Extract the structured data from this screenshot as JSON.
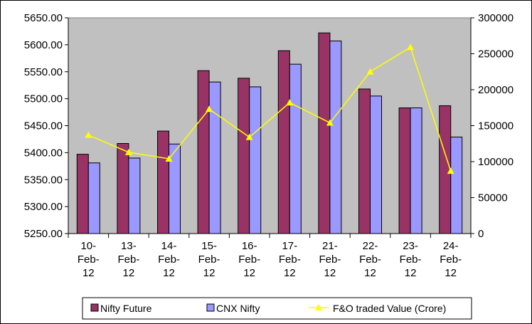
{
  "chart_data": {
    "type": "bar",
    "categories": [
      [
        "10-",
        "Feb-",
        "12"
      ],
      [
        "13-",
        "Feb-",
        "12"
      ],
      [
        "14-",
        "Feb-",
        "12"
      ],
      [
        "15-",
        "Feb-",
        "12"
      ],
      [
        "16-",
        "Feb-",
        "12"
      ],
      [
        "17-",
        "Feb-",
        "12"
      ],
      [
        "21-",
        "Feb-",
        "12"
      ],
      [
        "22-",
        "Feb-",
        "12"
      ],
      [
        "23-",
        "Feb-",
        "12"
      ],
      [
        "24-",
        "Feb-",
        "12"
      ]
    ],
    "series": [
      {
        "name": "Nifty Future",
        "type": "bar",
        "axis": "left",
        "color": "#993366",
        "values": [
          5397,
          5417,
          5440,
          5552,
          5538,
          5589,
          5622,
          5518,
          5483,
          5487
        ]
      },
      {
        "name": "CNX Nifty",
        "type": "bar",
        "axis": "left",
        "color": "#9999ff",
        "values": [
          5381,
          5390,
          5416,
          5531,
          5522,
          5564,
          5607,
          5505,
          5483,
          5429
        ]
      },
      {
        "name": "F&O traded Value (Crore)",
        "type": "line",
        "axis": "right",
        "color": "#ffff00",
        "values": [
          137000,
          113000,
          104000,
          173000,
          134000,
          182000,
          154000,
          225000,
          259000,
          87000
        ]
      }
    ],
    "y_left": {
      "min": 5250,
      "max": 5650,
      "step": 50,
      "ticks": [
        "5250.00",
        "5300.00",
        "5350.00",
        "5400.00",
        "5450.00",
        "5500.00",
        "5550.00",
        "5600.00",
        "5650.00"
      ]
    },
    "y_right": {
      "min": 0,
      "max": 300000,
      "step": 50000,
      "ticks": [
        "0",
        "50000",
        "100000",
        "150000",
        "200000",
        "250000",
        "300000"
      ]
    },
    "plot_background": "#c0c0c0",
    "grid": false,
    "legend_position": "bottom"
  }
}
